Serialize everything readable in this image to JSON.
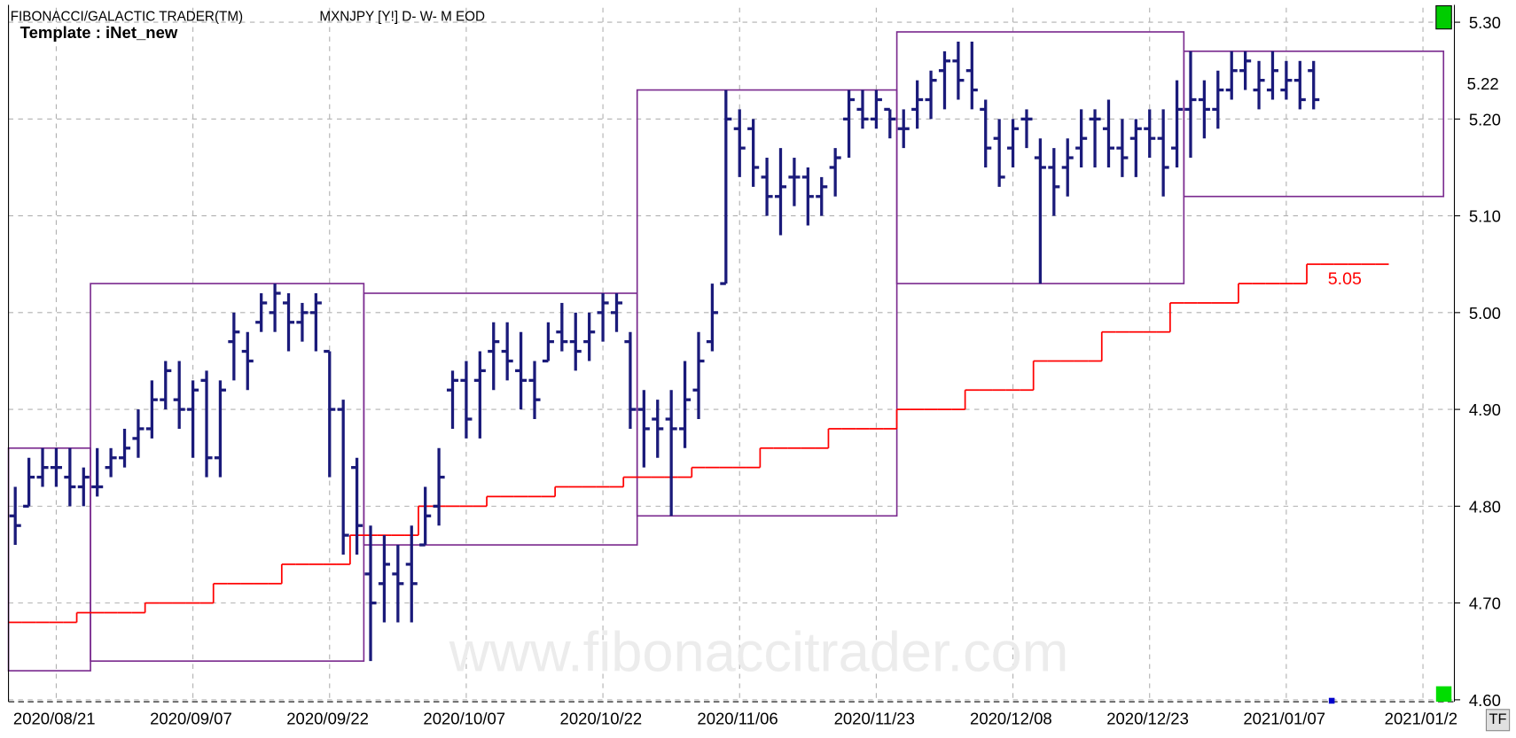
{
  "chart_data": {
    "type": "ohlc",
    "title": "FIBONACCI/GALACTIC TRADER(TM)",
    "subtitle": "MXNJPY [Y!] D- W- M EOD",
    "template": "Template : iNet_new",
    "watermark": "www.fibonaccitrader.com",
    "button": "TF",
    "bar_color": "#1a1a7a",
    "grid": true,
    "ylim": [
      4.6,
      5.31
    ],
    "yticks": [
      {
        "value": 4.6,
        "label": "4.60"
      },
      {
        "value": 4.7,
        "label": "4.70"
      },
      {
        "value": 4.8,
        "label": "4.80"
      },
      {
        "value": 4.9,
        "label": "4.90"
      },
      {
        "value": 5.0,
        "label": "5.00"
      },
      {
        "value": 5.1,
        "label": "5.10"
      },
      {
        "value": 5.2,
        "label": "5.20"
      },
      {
        "value": 5.3,
        "label": "5.30"
      }
    ],
    "last_price": 5.22,
    "categories": [
      null,
      null,
      null,
      "2020/08/21",
      null,
      null,
      null,
      null,
      null,
      null,
      null,
      null,
      null,
      "2020/09/07",
      null,
      null,
      null,
      null,
      null,
      null,
      null,
      null,
      null,
      "2020/09/22",
      null,
      null,
      null,
      null,
      null,
      null,
      null,
      null,
      null,
      "2020/10/07",
      null,
      null,
      null,
      null,
      null,
      null,
      null,
      null,
      null,
      "2020/10/22",
      null,
      null,
      null,
      null,
      null,
      null,
      null,
      null,
      null,
      "2020/11/06",
      null,
      null,
      null,
      null,
      null,
      null,
      null,
      null,
      null,
      "2020/11/23",
      null,
      null,
      null,
      null,
      null,
      null,
      null,
      null,
      null,
      "2020/12/08",
      null,
      null,
      null,
      null,
      null,
      null,
      null,
      null,
      null,
      "2020/12/23",
      null,
      null,
      null,
      null,
      null,
      null,
      null,
      null,
      null,
      "2021/01/07",
      null,
      null,
      null,
      null,
      null,
      null,
      null,
      null,
      null,
      "2021/01/2"
    ],
    "open": [
      4.79,
      4.8,
      4.83,
      4.84,
      4.83,
      4.82,
      4.82,
      4.84,
      4.85,
      4.87,
      4.88,
      4.91,
      4.91,
      4.9,
      4.93,
      4.85,
      4.97,
      4.96,
      4.99,
      5.0,
      5.01,
      4.99,
      5.0,
      4.96,
      4.9,
      4.84,
      4.73,
      4.72,
      4.73,
      4.74,
      4.76,
      4.8,
      4.92,
      4.93,
      4.93,
      4.96,
      4.96,
      4.94,
      4.93,
      4.95,
      4.98,
      4.97,
      4.97,
      5.0,
      5.0,
      4.97,
      4.9,
      4.89,
      4.89,
      4.88,
      4.92,
      4.97,
      5.03,
      5.19,
      5.19,
      5.14,
      5.12,
      5.14,
      5.14,
      5.12,
      5.15,
      5.2,
      5.21,
      5.2,
      5.21,
      5.19,
      5.21,
      5.22,
      5.25,
      5.26,
      5.25,
      5.21,
      5.18,
      5.17,
      5.2,
      5.16,
      5.15,
      5.15,
      5.17,
      5.2,
      5.19,
      5.17,
      5.18,
      5.19,
      5.18,
      5.17,
      5.21,
      5.22,
      5.21,
      5.23,
      5.25,
      5.23,
      5.23,
      5.23,
      5.24,
      5.25,
      null,
      null,
      null,
      null,
      null,
      null,
      null,
      null
    ],
    "high": [
      4.82,
      4.85,
      4.86,
      4.86,
      4.86,
      4.84,
      4.86,
      4.86,
      4.88,
      4.9,
      4.93,
      4.95,
      4.95,
      4.93,
      4.94,
      4.93,
      5.0,
      4.98,
      5.02,
      5.03,
      5.02,
      5.01,
      5.02,
      4.96,
      4.91,
      4.85,
      4.78,
      4.77,
      4.76,
      4.78,
      4.82,
      4.86,
      4.94,
      4.95,
      4.96,
      4.99,
      4.99,
      4.98,
      4.95,
      4.99,
      5.01,
      5.0,
      5.0,
      5.02,
      5.02,
      4.98,
      4.92,
      4.91,
      4.92,
      4.95,
      4.98,
      5.03,
      5.23,
      5.21,
      5.2,
      5.16,
      5.17,
      5.16,
      5.15,
      5.14,
      5.17,
      5.23,
      5.23,
      5.23,
      5.21,
      5.21,
      5.24,
      5.25,
      5.27,
      5.28,
      5.28,
      5.22,
      5.2,
      5.2,
      5.21,
      5.18,
      5.17,
      5.18,
      5.21,
      5.21,
      5.22,
      5.2,
      5.2,
      5.21,
      5.21,
      5.24,
      5.27,
      5.24,
      5.25,
      5.27,
      5.27,
      5.26,
      5.27,
      5.26,
      5.26,
      5.26,
      null,
      null,
      null,
      null,
      null,
      null,
      null,
      null
    ],
    "low": [
      4.76,
      4.8,
      4.82,
      4.82,
      4.8,
      4.8,
      4.81,
      4.83,
      4.84,
      4.85,
      4.87,
      4.9,
      4.88,
      4.85,
      4.83,
      4.83,
      4.93,
      4.92,
      4.98,
      4.98,
      4.96,
      4.97,
      4.96,
      4.83,
      4.75,
      4.75,
      4.64,
      4.68,
      4.68,
      4.68,
      4.76,
      4.78,
      4.88,
      4.87,
      4.87,
      4.92,
      4.93,
      4.9,
      4.89,
      4.95,
      4.96,
      4.94,
      4.95,
      4.97,
      4.98,
      4.88,
      4.84,
      4.85,
      4.79,
      4.86,
      4.89,
      4.96,
      5.03,
      5.14,
      5.13,
      5.1,
      5.08,
      5.11,
      5.09,
      5.1,
      5.12,
      5.16,
      5.19,
      5.19,
      5.18,
      5.17,
      5.19,
      5.2,
      5.21,
      5.22,
      5.21,
      5.15,
      5.13,
      5.15,
      5.17,
      5.03,
      5.1,
      5.12,
      5.15,
      5.15,
      5.15,
      5.14,
      5.14,
      5.16,
      5.12,
      5.15,
      5.16,
      5.18,
      5.19,
      5.22,
      5.23,
      5.21,
      5.22,
      5.22,
      5.21,
      5.21,
      null,
      null,
      null,
      null,
      null,
      null,
      null,
      null
    ],
    "close": [
      4.78,
      4.83,
      4.84,
      4.84,
      4.82,
      4.83,
      4.82,
      4.85,
      4.86,
      4.88,
      4.91,
      4.94,
      4.9,
      4.92,
      4.85,
      4.92,
      4.98,
      4.95,
      5.01,
      5.02,
      4.99,
      5.0,
      5.01,
      4.9,
      4.77,
      4.78,
      4.7,
      4.74,
      4.72,
      4.72,
      4.79,
      4.83,
      4.93,
      4.89,
      4.94,
      4.97,
      4.95,
      4.93,
      4.91,
      4.97,
      4.97,
      4.96,
      4.98,
      5.01,
      5.01,
      4.9,
      4.88,
      4.88,
      4.88,
      4.91,
      4.95,
      5.0,
      5.2,
      5.17,
      5.15,
      5.12,
      5.13,
      5.14,
      5.12,
      5.13,
      5.16,
      5.22,
      5.2,
      5.22,
      5.2,
      5.19,
      5.22,
      5.24,
      5.26,
      5.24,
      5.23,
      5.17,
      5.14,
      5.19,
      5.2,
      5.15,
      5.13,
      5.16,
      5.18,
      5.2,
      5.17,
      5.16,
      5.19,
      5.18,
      5.15,
      5.21,
      5.22,
      5.21,
      5.23,
      5.25,
      5.26,
      5.24,
      5.25,
      5.24,
      5.22,
      5.22,
      null,
      null,
      null,
      null,
      null,
      null,
      null,
      null
    ],
    "stop": {
      "color": "#ff0000",
      "last_value": 5.05,
      "values": [
        4.68,
        4.68,
        4.68,
        4.68,
        4.68,
        4.69,
        4.69,
        4.69,
        4.69,
        4.69,
        4.7,
        4.7,
        4.7,
        4.7,
        4.7,
        4.72,
        4.72,
        4.72,
        4.72,
        4.72,
        4.74,
        4.74,
        4.74,
        4.74,
        4.74,
        4.77,
        4.77,
        4.77,
        4.77,
        4.77,
        4.8,
        4.8,
        4.8,
        4.8,
        4.8,
        4.81,
        4.81,
        4.81,
        4.81,
        4.81,
        4.82,
        4.82,
        4.82,
        4.82,
        4.82,
        4.83,
        4.83,
        4.83,
        4.83,
        4.83,
        4.84,
        4.84,
        4.84,
        4.84,
        4.84,
        4.86,
        4.86,
        4.86,
        4.86,
        4.86,
        4.88,
        4.88,
        4.88,
        4.88,
        4.88,
        4.9,
        4.9,
        4.9,
        4.9,
        4.9,
        4.92,
        4.92,
        4.92,
        4.92,
        4.92,
        4.95,
        4.95,
        4.95,
        4.95,
        4.95,
        4.98,
        4.98,
        4.98,
        4.98,
        4.98,
        5.01,
        5.01,
        5.01,
        5.01,
        5.01,
        5.03,
        5.03,
        5.03,
        5.03,
        5.03,
        5.05,
        5.05,
        5.05,
        5.05,
        5.05,
        5.05,
        null,
        null,
        null
      ]
    },
    "ranges": {
      "color": "#7b2b8f",
      "boxes": [
        {
          "from": 0,
          "to": 6,
          "low": 4.63,
          "high": 4.86
        },
        {
          "from": 6,
          "to": 26,
          "low": 4.64,
          "high": 5.03
        },
        {
          "from": 26,
          "to": 46,
          "low": 4.76,
          "high": 5.02
        },
        {
          "from": 46,
          "to": 65,
          "low": 4.79,
          "high": 5.23
        },
        {
          "from": 65,
          "to": 86,
          "low": 5.03,
          "high": 5.29
        },
        {
          "from": 86,
          "to": 105,
          "low": 5.12,
          "high": 5.27
        }
      ]
    }
  }
}
